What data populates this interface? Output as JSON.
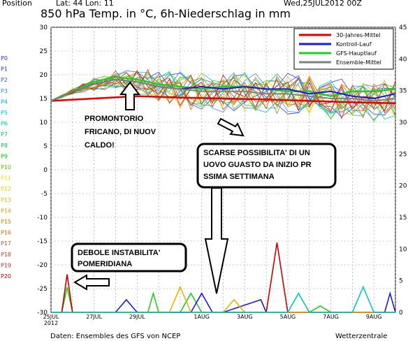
{
  "header": {
    "position": "Position",
    "latlon": "Lat: 44 Lon: 11",
    "datetime": "Wed,25JUL2012 00Z",
    "title": "850 hPa Temp. in °C, 6h-Niederschlag in mm"
  },
  "footer": {
    "source": "Daten: Ensembles des GFS von NCEP",
    "brand": "Wetterzentrale"
  },
  "perturbation_labels": [
    {
      "name": "P0",
      "color": "#2a2aff"
    },
    {
      "name": "P1",
      "color": "#2a2aff"
    },
    {
      "name": "P2",
      "color": "#2a62ff"
    },
    {
      "name": "P3",
      "color": "#1e90ff"
    },
    {
      "name": "P4",
      "color": "#00aaee"
    },
    {
      "name": "P5",
      "color": "#00c8c8"
    },
    {
      "name": "P6",
      "color": "#00c8a0"
    },
    {
      "name": "P7",
      "color": "#00c878"
    },
    {
      "name": "P8",
      "color": "#00c850"
    },
    {
      "name": "P9",
      "color": "#00c800"
    },
    {
      "name": "P10",
      "color": "#50c800"
    },
    {
      "name": "P11",
      "color": "#e6e600"
    },
    {
      "name": "P12",
      "color": "#e6d200"
    },
    {
      "name": "P13",
      "color": "#e6b400"
    },
    {
      "name": "P14",
      "color": "#e69600"
    },
    {
      "name": "P15",
      "color": "#e67800"
    },
    {
      "name": "P16",
      "color": "#d26400"
    },
    {
      "name": "P17",
      "color": "#c85032"
    },
    {
      "name": "P18",
      "color": "#c83c3c"
    },
    {
      "name": "P19",
      "color": "#c82828"
    },
    {
      "name": "P20",
      "color": "#c80000"
    }
  ],
  "annotations": {
    "promontorio": "PROMONTORIO AFRICANO, DI NUOVO CALDO!",
    "scarse": "SCARSE POSSIBILITA' DI UN NUOVO GUASTO DA INIZIO PROSSIMA SETTIMANA",
    "debole": "DEBOLE INSTABILITA' POMERIDIANA"
  },
  "chart_data": {
    "type": "line",
    "x_tick_labels": [
      "25JUL 2012",
      "27JUL",
      "29JUL",
      "1AUG",
      "3AUG",
      "5AUG",
      "7AUG",
      "9AUG"
    ],
    "x_tick_days": [
      0,
      2,
      4,
      7,
      9,
      11,
      13,
      15
    ],
    "x_range_days": [
      0,
      16
    ],
    "y_left": {
      "label": "°C",
      "range": [
        -30,
        30
      ],
      "ticks": [
        30,
        25,
        20,
        15,
        10,
        5,
        0,
        -5,
        -10,
        -15,
        -20,
        -25,
        -30
      ]
    },
    "y_right": {
      "label": "mm",
      "range": [
        0,
        45
      ],
      "ticks": [
        45,
        40,
        35,
        30,
        25,
        20,
        15,
        10,
        5,
        0
      ]
    },
    "grid": true,
    "legend_position": "top-right",
    "legend": [
      {
        "name": "30-Jahres-Mittel",
        "color": "#e00000"
      },
      {
        "name": "Kontroll-Lauf",
        "color": "#1a1ad8"
      },
      {
        "name": "GFS-Hauptlauf",
        "color": "#22cc22"
      },
      {
        "name": "Ensemble-Mittel",
        "color": "#808080"
      }
    ],
    "temperature_series": [
      {
        "name": "30-Jahres-Mittel",
        "color": "#e00000",
        "points": [
          [
            0,
            14.5
          ],
          [
            2,
            15.0
          ],
          [
            4,
            15.5
          ],
          [
            6,
            15.2
          ],
          [
            8,
            15.0
          ],
          [
            10,
            14.8
          ],
          [
            12,
            14.5
          ],
          [
            14,
            14.2
          ],
          [
            16,
            14.0
          ]
        ]
      },
      {
        "name": "GFS-Hauptlauf",
        "color": "#22cc22",
        "points": [
          [
            0,
            14.5
          ],
          [
            1,
            16.5
          ],
          [
            2,
            18.5
          ],
          [
            3,
            19.5
          ],
          [
            4,
            19.0
          ],
          [
            5,
            18.0
          ],
          [
            6,
            17.5
          ],
          [
            7,
            17.0
          ],
          [
            8,
            17.5
          ],
          [
            9,
            17.5
          ],
          [
            10,
            17.0
          ],
          [
            11,
            16.5
          ],
          [
            12,
            16.5
          ],
          [
            13,
            15.5
          ],
          [
            14,
            16.5
          ],
          [
            15,
            16.5
          ],
          [
            16,
            17.0
          ]
        ]
      },
      {
        "name": "Kontroll-Lauf",
        "color": "#1a1ad8",
        "points": [
          [
            0,
            14.5
          ],
          [
            1,
            16.5
          ],
          [
            2,
            18.0
          ],
          [
            3,
            19.0
          ],
          [
            4,
            18.5
          ],
          [
            5,
            17.5
          ],
          [
            6,
            17.0
          ],
          [
            7,
            17.5
          ],
          [
            8,
            17.0
          ],
          [
            9,
            17.5
          ],
          [
            10,
            17.0
          ],
          [
            11,
            17.0
          ],
          [
            12,
            16.0
          ],
          [
            13,
            16.5
          ],
          [
            14,
            15.5
          ],
          [
            15,
            15.0
          ],
          [
            16,
            16.0
          ]
        ]
      },
      {
        "name": "Ensemble-Mittel",
        "color": "#808080",
        "points": [
          [
            0,
            14.5
          ],
          [
            1,
            16.5
          ],
          [
            2,
            18.0
          ],
          [
            3,
            19.0
          ],
          [
            4,
            18.5
          ],
          [
            5,
            17.5
          ],
          [
            6,
            17.0
          ],
          [
            7,
            16.5
          ],
          [
            8,
            16.5
          ],
          [
            9,
            16.5
          ],
          [
            10,
            16.0
          ],
          [
            11,
            16.0
          ],
          [
            12,
            15.5
          ],
          [
            13,
            15.0
          ],
          [
            14,
            15.0
          ],
          [
            15,
            14.5
          ],
          [
            16,
            15.0
          ]
        ]
      }
    ],
    "precip_series": [
      {
        "name": "GFS-Hauptlauf",
        "color": "#22cc22",
        "points": [
          [
            0,
            0
          ],
          [
            0.5,
            0
          ],
          [
            0.75,
            4
          ],
          [
            1,
            0
          ],
          [
            4.5,
            0
          ],
          [
            4.75,
            3
          ],
          [
            5,
            0
          ],
          [
            6,
            0
          ],
          [
            6.5,
            3
          ],
          [
            7,
            0
          ],
          [
            12,
            0
          ],
          [
            12.5,
            1
          ],
          [
            13,
            0
          ],
          [
            16,
            0
          ]
        ]
      },
      {
        "name": "Kontroll-Lauf",
        "color": "#1a1ad8",
        "points": [
          [
            0,
            0
          ],
          [
            3,
            0
          ],
          [
            3.5,
            2
          ],
          [
            4,
            0
          ],
          [
            6.5,
            0
          ],
          [
            7,
            3
          ],
          [
            7.5,
            0
          ],
          [
            8,
            0
          ],
          [
            9.75,
            2
          ],
          [
            10,
            0
          ],
          [
            15.5,
            0
          ],
          [
            15.75,
            3
          ],
          [
            16,
            0
          ]
        ]
      },
      {
        "name": "P20",
        "color": "#c80000",
        "points": [
          [
            0,
            0
          ],
          [
            0.5,
            0
          ],
          [
            0.75,
            6
          ],
          [
            1,
            0
          ],
          [
            10,
            0
          ],
          [
            10.5,
            11
          ],
          [
            11,
            0
          ],
          [
            16,
            0
          ]
        ]
      },
      {
        "name": "P13",
        "color": "#e6b400",
        "points": [
          [
            0,
            0
          ],
          [
            5.5,
            0
          ],
          [
            6,
            4
          ],
          [
            6.5,
            0
          ],
          [
            8,
            0
          ],
          [
            8.5,
            2
          ],
          [
            9,
            0
          ],
          [
            16,
            0
          ]
        ]
      },
      {
        "name": "P5",
        "color": "#00c8c8",
        "points": [
          [
            0,
            0
          ],
          [
            11,
            0
          ],
          [
            11.5,
            3
          ],
          [
            12,
            0
          ],
          [
            14,
            0
          ],
          [
            14.5,
            4
          ],
          [
            15,
            0
          ],
          [
            16,
            0
          ]
        ]
      }
    ]
  }
}
